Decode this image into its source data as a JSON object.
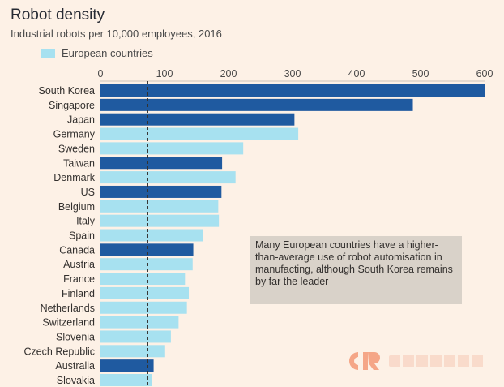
{
  "chart_data": {
    "type": "bar",
    "orientation": "horizontal",
    "title": "Robot density",
    "subtitle": "Industrial robots per 10,000 employees, 2016",
    "legend": {
      "label": "European countries",
      "color": "#a7e1f0",
      "placement": "top-left"
    },
    "colors": {
      "european": "#a7e1f0",
      "other": "#1f5aa0"
    },
    "xlim": [
      0,
      600
    ],
    "xticks": [
      0,
      100,
      200,
      300,
      400,
      500,
      600
    ],
    "reference_line": {
      "value": 74,
      "style": "dashed"
    },
    "categories": [
      "South Korea",
      "Singapore",
      "Japan",
      "Germany",
      "Sweden",
      "Taiwan",
      "Denmark",
      "US",
      "Belgium",
      "Italy",
      "Spain",
      "Canada",
      "Austria",
      "France",
      "Finland",
      "Netherlands",
      "Switzerland",
      "Slovenia",
      "Czech Republic",
      "Australia",
      "Slovakia"
    ],
    "values": [
      631,
      488,
      303,
      309,
      223,
      190,
      211,
      189,
      184,
      185,
      160,
      145,
      144,
      132,
      138,
      135,
      122,
      110,
      101,
      83,
      80
    ],
    "european": [
      false,
      false,
      false,
      true,
      true,
      false,
      true,
      false,
      true,
      true,
      true,
      false,
      true,
      true,
      true,
      true,
      true,
      true,
      true,
      false,
      true
    ],
    "annotation": "Many European countries have a higher-than-average use of robot automisation in manufacting, although South Korea remains by far the leader"
  }
}
